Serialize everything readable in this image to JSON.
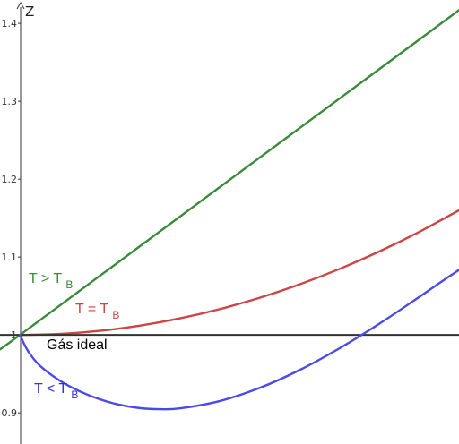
{
  "chart_data": {
    "type": "line",
    "title": "",
    "xlabel": "",
    "ylabel": "Z",
    "ylim": [
      0.86,
      1.43
    ],
    "xlim": [
      -0.25,
      5.5
    ],
    "grid": false,
    "y_ticks": [
      {
        "value": 0.9,
        "label": "0.9"
      },
      {
        "value": 1.0,
        "label": "1"
      },
      {
        "value": 1.1,
        "label": "1.1"
      },
      {
        "value": 1.2,
        "label": "1.2"
      },
      {
        "value": 1.3,
        "label": "1.3"
      },
      {
        "value": 1.4,
        "label": "1.4"
      }
    ],
    "series": [
      {
        "key": "high",
        "main": "T > T",
        "subscript": "B",
        "color": "#3a8a3a",
        "x": [
          -0.25,
          0,
          1,
          2,
          3,
          4,
          5,
          5.5
        ],
        "y": [
          0.9815,
          1.0,
          1.0758,
          1.1516,
          1.2274,
          1.3032,
          1.379,
          1.4169
        ]
      },
      {
        "key": "boyle",
        "main": "T = T",
        "subscript": "B",
        "color": "#cc4444",
        "x": [
          0,
          0.5,
          1,
          1.5,
          2,
          2.5,
          3,
          3.5,
          4,
          4.5,
          5,
          5.5
        ],
        "y": [
          1.0,
          1.0013,
          1.0053,
          1.0119,
          1.0212,
          1.0331,
          1.0476,
          1.0648,
          1.0846,
          1.1071,
          1.1322,
          1.16
        ]
      },
      {
        "key": "ideal",
        "main": "Gás ideal",
        "subscript": "",
        "color": "#333333",
        "x": [
          -0.25,
          5.5
        ],
        "y": [
          1.0,
          1.0
        ]
      },
      {
        "key": "low",
        "main": "T < T",
        "subscript": "B",
        "color": "#4a4ae8",
        "x": [
          0,
          0.1,
          0.25,
          0.5,
          0.75,
          1,
          1.25,
          1.5,
          1.75,
          2,
          2.5,
          3,
          3.5,
          4,
          4.5,
          5,
          5.25,
          5.5
        ],
        "y": [
          1.0,
          0.9795,
          0.9605,
          0.9413,
          0.9276,
          0.9174,
          0.9103,
          0.9061,
          0.9047,
          0.9057,
          0.9151,
          0.9319,
          0.9548,
          0.9827,
          1.0143,
          1.0486,
          1.0663,
          1.0835
        ]
      }
    ]
  }
}
